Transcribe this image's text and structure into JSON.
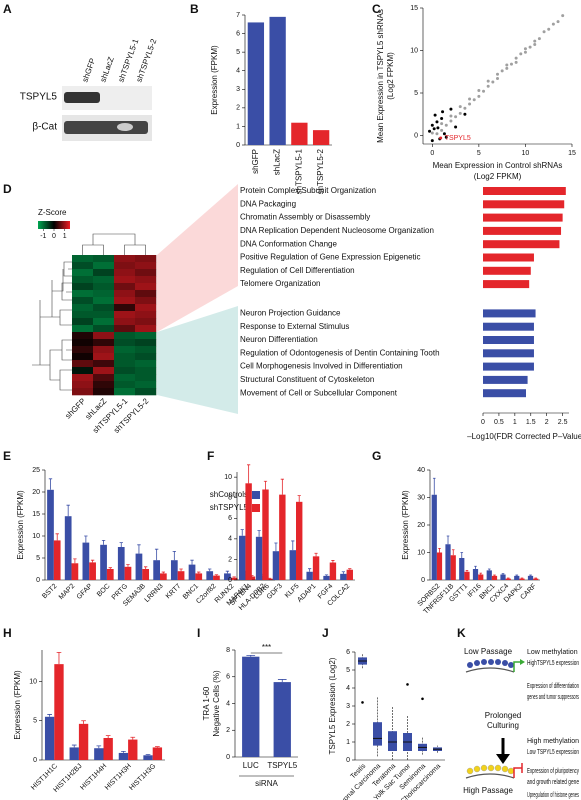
{
  "panel_labels": [
    "A",
    "B",
    "C",
    "D",
    "E",
    "F",
    "G",
    "H",
    "I",
    "J",
    "K"
  ],
  "blot": {
    "columns": [
      "shGFP",
      "shLacZ",
      "shTSPYL5-1",
      "shTSPYL5-2"
    ],
    "rows": [
      "TSPYL5",
      "β-Cat"
    ]
  },
  "diagram": {
    "low_passage": "Low Passage",
    "low_notes": [
      "Low methylation",
      "HighTSPYL5 expression",
      "Expression of differentiation",
      "genes and tumor suppressors"
    ],
    "middle": [
      "Prolonged",
      "Culturing"
    ],
    "high_passage": "High Passage",
    "high_notes": [
      "High methylation",
      "Low TSPYL5 expression",
      "Expression of pluripotency",
      "and growth related gene",
      "Upregulation of histone genes"
    ]
  },
  "chart_data": [
    {
      "type": "bar",
      "categories": [
        "shGFP",
        "shLacZ",
        "shTSPYL5-1",
        "shTSPYL5-2"
      ],
      "values": [
        6.6,
        6.9,
        1.2,
        0.8
      ],
      "colors": [
        "#3a4ea6",
        "#3a4ea6",
        "#e4262b",
        "#e4262b"
      ],
      "ylabel": "Expression (FPKM)",
      "ylim": [
        0,
        7
      ],
      "yticks": [
        0,
        1,
        2,
        3,
        4,
        5,
        6,
        7
      ]
    },
    {
      "type": "scatter",
      "xlabel": [
        "Mean Expression in Control shRNAs",
        "(Log2 FPKM)"
      ],
      "ylabel": [
        "Mean Expression in TSPYL5 shRNAs",
        "(Log2 FPKM)"
      ],
      "xlim": [
        -1,
        15
      ],
      "ylim": [
        -1,
        15
      ],
      "xticks": [
        0,
        5,
        10,
        15
      ],
      "yticks": [
        0,
        5,
        10,
        15
      ],
      "annotation": "TSPYL5",
      "series": [
        {
          "color": "#a0a0a0",
          "x": [
            0,
            0.5,
            1,
            1.5,
            2,
            2.5,
            3,
            3.5,
            4,
            4.5,
            5,
            5.5,
            6,
            6.5,
            7,
            7.5,
            8,
            8.5,
            9,
            9.5,
            10,
            10.5,
            11,
            11.5,
            12,
            12.5,
            13,
            13.5,
            14,
            1,
            2,
            3,
            4,
            5,
            6,
            7,
            8,
            9,
            10,
            11
          ],
          "values": [
            0.3,
            0.2,
            1.4,
            1.2,
            2.3,
            2.2,
            3.4,
            3.2,
            4.3,
            4.2,
            5.3,
            5.2,
            6.4,
            6.3,
            7.2,
            7.6,
            8.3,
            8.4,
            9.1,
            9.6,
            10.2,
            10.4,
            11.1,
            11.4,
            12.2,
            12.5,
            13.1,
            13.4,
            14.1,
            0.6,
            1.7,
            2.6,
            3.7,
            4.6,
            5.8,
            6.7,
            7.9,
            8.6,
            9.8,
            10.7
          ]
        },
        {
          "color": "#000000",
          "x": [
            0,
            0.2,
            0.5,
            0.8,
            1,
            1.3,
            0,
            0.3,
            1.5,
            2,
            -0.3,
            0.6,
            2.5,
            1.1,
            3.5
          ],
          "values": [
            1.2,
            0.8,
            1.6,
            -0.4,
            2.0,
            0.2,
            -0.6,
            2.4,
            -0.2,
            3.1,
            0.5,
            0.9,
            1.0,
            2.8,
            2.5
          ]
        },
        {
          "color": "#e4262b",
          "x": [
            0.9
          ],
          "values": [
            -0.3
          ]
        }
      ]
    },
    {
      "type": "heatmap",
      "title": "Z-Score",
      "columns": [
        "shGFP",
        "shLacZ",
        "shTSPYL5-1",
        "shTSPYL5-2"
      ],
      "zlim": [
        -1.5,
        1.5
      ],
      "zticks": [
        -1,
        0,
        1
      ],
      "colormap": [
        "#00a651",
        "#000000",
        "#ed1c24"
      ],
      "values": [
        [
          -0.9,
          -0.8,
          0.9,
          0.8
        ],
        [
          -0.7,
          -1,
          0.8,
          0.9
        ],
        [
          -1,
          -0.6,
          0.9,
          0.7
        ],
        [
          -0.8,
          -0.9,
          1,
          0.9
        ],
        [
          -0.6,
          -0.8,
          0.7,
          1
        ],
        [
          -1,
          -0.9,
          0.9,
          0.6
        ],
        [
          -0.7,
          -1,
          1,
          0.8
        ],
        [
          -0.9,
          -0.7,
          0.3,
          1
        ],
        [
          -0.8,
          -0.8,
          1,
          0.9
        ],
        [
          -0.6,
          -1,
          0.9,
          0.8
        ],
        [
          -1,
          -0.7,
          0.6,
          1
        ],
        [
          0.2,
          0.9,
          -0.8,
          -0.9
        ],
        [
          0.1,
          0.3,
          -0.7,
          -0.6
        ],
        [
          0.3,
          0.9,
          -0.9,
          -0.8
        ],
        [
          0.1,
          1,
          -0.8,
          -0.7
        ],
        [
          0.6,
          0.4,
          -0.8,
          -0.9
        ],
        [
          -0.2,
          1,
          -0.7,
          -0.8
        ],
        [
          1,
          0.5,
          -0.9,
          -0.8
        ],
        [
          0.9,
          0.3,
          -0.8,
          -0.9
        ],
        [
          0.8,
          0.2,
          -1,
          -0.7
        ]
      ]
    },
    {
      "type": "hbar",
      "categories": [
        "Protein Complex Subunit Organization",
        "DNA Packaging",
        "Chromatin Assembly or Disassembly",
        "DNA Replication Dependent Nucleosome Organization",
        "DNA Conformation Change",
        "Positive Regulation of Gene Expression Epigenetic",
        "Regulation of Cell Differentiation",
        "Telomere Organization",
        "Neuron Projection Guidance",
        "Response to External Stimulus",
        "Neuron Differentiation",
        "Regulation of Odontogenesis of Dentin Containing Tooth",
        "Cell Morphogenesis Involved in Differentiation",
        "Structural Constituent of Cytoskeleton",
        "Movement of Cell or Subcellular Component"
      ],
      "values": [
        2.6,
        2.55,
        2.5,
        2.45,
        2.4,
        1.6,
        1.5,
        1.45,
        1.65,
        1.6,
        1.6,
        1.6,
        1.6,
        1.4,
        1.35
      ],
      "colors": [
        "#e4262b",
        "#e4262b",
        "#e4262b",
        "#e4262b",
        "#e4262b",
        "#e4262b",
        "#e4262b",
        "#e4262b",
        "#3a4ea6",
        "#3a4ea6",
        "#3a4ea6",
        "#3a4ea6",
        "#3a4ea6",
        "#3a4ea6",
        "#3a4ea6"
      ],
      "xlim": [
        0,
        2.7
      ],
      "xticks": [
        0,
        0.5,
        1,
        1.5,
        2,
        2.5
      ],
      "xlabel": "–Log10(FDR Corrected P–Value)"
    },
    {
      "type": "groupedbar",
      "ylabel": "Expression (FPKM)",
      "ylim": [
        0,
        25
      ],
      "yticks": [
        0,
        5,
        10,
        15,
        20,
        25
      ],
      "legend": "upper right",
      "categories": [
        "BST2",
        "MAP2",
        "GFAP",
        "BOC",
        "PRTG",
        "SEMA3B",
        "LRRN3",
        "KRT7",
        "BNC1",
        "C2orf82",
        "RUNX2",
        "SPTBN4",
        "LGR6"
      ],
      "series": [
        {
          "name": "shControls",
          "color": "#3a4ea6",
          "values": [
            20.5,
            14.5,
            8.5,
            8,
            7.5,
            6,
            4.5,
            4.5,
            3.5,
            2,
            1.5,
            1.5,
            1
          ],
          "errors": [
            2.5,
            2.5,
            1.5,
            1,
            1,
            2,
            2.5,
            2,
            1,
            0.5,
            0.5,
            0.5,
            0.3
          ]
        },
        {
          "name": "shTSPYL5",
          "color": "#e4262b",
          "values": [
            9,
            3.8,
            4,
            2.5,
            3,
            2.5,
            1.5,
            2,
            1.5,
            1,
            0.5,
            0.8,
            0.3
          ],
          "errors": [
            1.5,
            1,
            0.5,
            0.3,
            0.5,
            0.5,
            0.3,
            0.5,
            0.3,
            0.2,
            0.2,
            0.2,
            0.1
          ]
        }
      ]
    },
    {
      "type": "groupedbar",
      "ylim": [
        0,
        10.5
      ],
      "yticks": [
        0,
        2,
        4,
        6,
        8,
        10
      ],
      "categories": [
        "MAP4K1",
        "HLA-DPB2",
        "GDF3",
        "KLF5",
        "ADAP1",
        "FGF4",
        "COLCA2"
      ],
      "series": [
        {
          "color": "#3a4ea6",
          "values": [
            4.3,
            4.2,
            2.8,
            2.9,
            0.8,
            0.4,
            0.6
          ],
          "errors": [
            0.6,
            0.6,
            0.8,
            0.9,
            0.3,
            0.1,
            0.2
          ]
        },
        {
          "color": "#e4262b",
          "values": [
            9.4,
            8.8,
            8.3,
            7.6,
            2.3,
            1.7,
            1.0
          ],
          "errors": [
            1.8,
            0.8,
            1.5,
            0.6,
            0.3,
            0.2,
            0.1
          ]
        }
      ]
    },
    {
      "type": "groupedbar",
      "ylabel": "Expression (FPKM)",
      "ylim": [
        0,
        40
      ],
      "yticks": [
        0,
        10,
        20,
        30,
        40
      ],
      "categories": [
        "SORBS2",
        "TNFRSF11B",
        "GSTT1",
        "IFI16",
        "BNC1",
        "CXXC4",
        "DAPK2",
        "CARF"
      ],
      "series": [
        {
          "color": "#3a4ea6",
          "values": [
            31,
            13,
            8,
            4,
            3.5,
            2,
            1.5,
            1.5
          ],
          "errors": [
            6,
            3,
            2,
            1,
            0.5,
            0.3,
            0.3,
            0.3
          ]
        },
        {
          "color": "#e4262b",
          "values": [
            10,
            9,
            3,
            2,
            1.5,
            0.5,
            0.5,
            0.5
          ],
          "errors": [
            1.5,
            2,
            0.5,
            0.5,
            0.3,
            0.2,
            0.2,
            0.2
          ]
        }
      ]
    },
    {
      "type": "groupedbar",
      "ylabel": "Expression (FPKM)",
      "ylim": [
        0,
        14
      ],
      "yticks": [
        0,
        5,
        10
      ],
      "categories": [
        "HIST1H1C",
        "HIST1H2BJ",
        "HIST1H4H",
        "HIST1H3H",
        "HIST1H3G"
      ],
      "series": [
        {
          "color": "#3a4ea6",
          "values": [
            5.5,
            1.6,
            1.5,
            0.9,
            0.6
          ],
          "errors": [
            0.3,
            0.3,
            0.3,
            0.2,
            0.1
          ]
        },
        {
          "color": "#e4262b",
          "values": [
            12.2,
            4.6,
            2.8,
            2.6,
            1.6
          ],
          "errors": [
            1.5,
            0.4,
            0.3,
            0.3,
            0.1
          ]
        }
      ]
    },
    {
      "type": "groupedbar",
      "ylabel": [
        "TRA 1-60",
        "Negative Cells (%)"
      ],
      "xlabel": "siRNA",
      "annotation": "***",
      "ylim": [
        0,
        8
      ],
      "yticks": [
        0,
        2,
        4,
        6,
        8
      ],
      "categories": [
        "LUC",
        "TSPYL5"
      ],
      "series": [
        {
          "color": "#3a4ea6",
          "values": [
            7.5,
            5.6
          ],
          "errors": [
            0.1,
            0.2
          ]
        }
      ]
    },
    {
      "type": "box",
      "ylabel": "TSPYL5 Expression (Log2)",
      "ylim": [
        0,
        6
      ],
      "yticks": [
        0,
        1,
        2,
        3,
        4,
        5,
        6
      ],
      "color": "#3a4ea6",
      "categories": [
        "Testis",
        "Embryonal Carcinoma",
        "Teratoma",
        "Yolk Sac Tumor",
        "Seminoma",
        "Choriocarcinoma"
      ],
      "min": [
        5.1,
        0.2,
        0,
        0,
        0.3,
        0.4
      ],
      "q1": [
        5.3,
        0.8,
        0.5,
        0.5,
        0.5,
        0.5
      ],
      "median": [
        5.5,
        1.2,
        1.0,
        1.0,
        0.7,
        0.6
      ],
      "q3": [
        5.7,
        2.1,
        1.6,
        1.5,
        0.9,
        0.7
      ],
      "max": [
        5.9,
        3.5,
        3.0,
        2.5,
        1.3,
        0.8
      ],
      "outliers": [
        [
          3.2
        ],
        [],
        [],
        [
          4.2
        ],
        [
          3.4
        ],
        []
      ]
    }
  ]
}
